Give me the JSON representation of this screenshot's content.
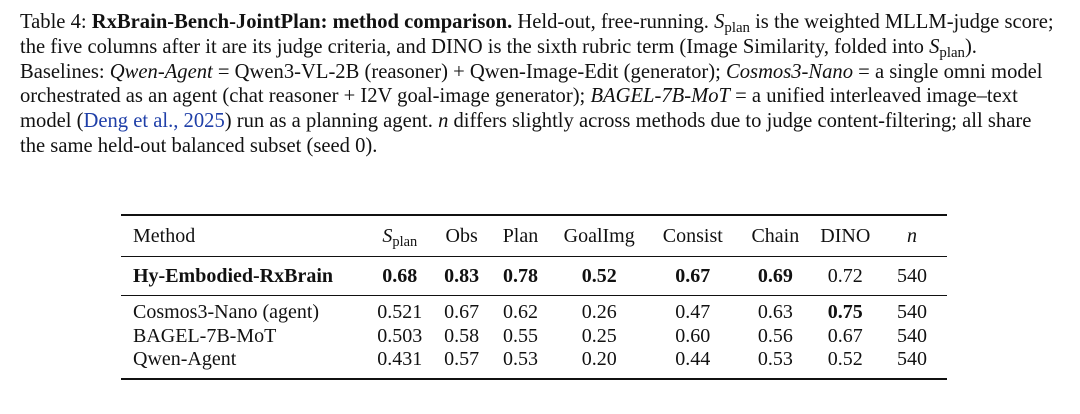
{
  "caption": {
    "label": "Table 4:",
    "title": "RxBrain-Bench-JointPlan: method comparison.",
    "t1": " Held-out, free-running. ",
    "splan_var": "S",
    "splan_sub": "plan",
    "t2": " is the weighted MLLM-judge score; the five columns after it are its judge criteria, and DINO is the sixth rubric term (Image Similarity, folded into ",
    "t3": "). Baselines: ",
    "qwen_name": "Qwen-Agent",
    "t4": " = Qwen3-VL-2B (reasoner) + Qwen-Image-Edit (generator); ",
    "cosmos_name": "Cosmos3-Nano",
    "t5": " = a single omni model orchestrated as an agent (chat reasoner + I2V goal-image generator); ",
    "bagel_name": "BAGEL-7B-MoT",
    "t6": " = a unified interleaved image–text model (",
    "cite": "Deng et al., 2025",
    "t7": ") run as a planning agent. ",
    "n_var": "n",
    "t8": " differs slightly across methods due to judge content-filtering; all share the same held-out balanced subset (seed 0)."
  },
  "table": {
    "headers": {
      "method": "Method",
      "splan_var": "S",
      "splan_sub": "plan",
      "obs": "Obs",
      "plan": "Plan",
      "goalimg": "GoalImg",
      "consist": "Consist",
      "chain": "Chain",
      "dino": "DINO",
      "n": "n"
    },
    "rows": [
      {
        "method": "Hy-Embodied-RxBrain",
        "splan": "0.68",
        "obs": "0.83",
        "plan": "0.78",
        "goalimg": "0.52",
        "consist": "0.67",
        "chain": "0.69",
        "dino": "0.72",
        "n": "540"
      },
      {
        "method": "Cosmos3-Nano (agent)",
        "splan": "0.521",
        "obs": "0.67",
        "plan": "0.62",
        "goalimg": "0.26",
        "consist": "0.47",
        "chain": "0.63",
        "dino": "0.75",
        "n": "540"
      },
      {
        "method": "BAGEL-7B-MoT",
        "splan": "0.503",
        "obs": "0.58",
        "plan": "0.55",
        "goalimg": "0.25",
        "consist": "0.60",
        "chain": "0.56",
        "dino": "0.67",
        "n": "540"
      },
      {
        "method": "Qwen-Agent",
        "splan": "0.431",
        "obs": "0.57",
        "plan": "0.53",
        "goalimg": "0.20",
        "consist": "0.44",
        "chain": "0.53",
        "dino": "0.52",
        "n": "540"
      }
    ]
  }
}
